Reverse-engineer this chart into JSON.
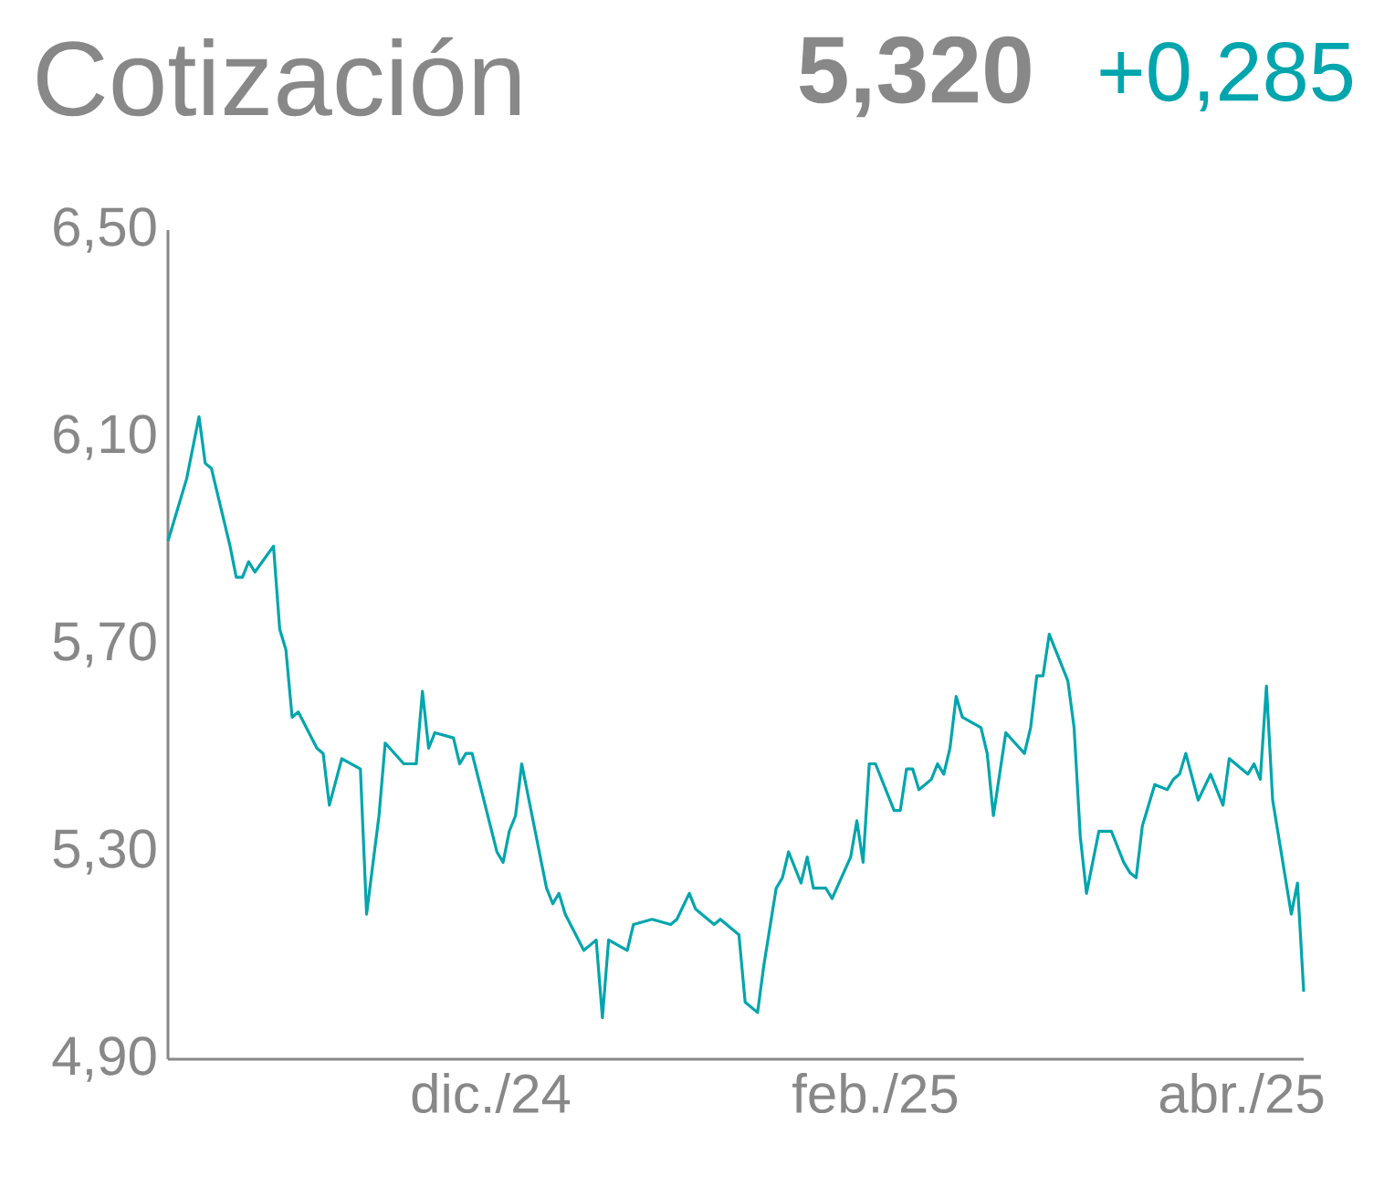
{
  "chart_data": {
    "type": "line",
    "title": "Cotización",
    "annotations": [
      "5,320",
      "+0,285"
    ],
    "color": "#00a5ad",
    "x": [
      "2024-10-10",
      "2024-10-13",
      "2024-10-15",
      "2024-10-16",
      "2024-10-17",
      "2024-10-20",
      "2024-10-21",
      "2024-10-22",
      "2024-10-23",
      "2024-10-24",
      "2024-10-27",
      "2024-10-28",
      "2024-10-29",
      "2024-10-30",
      "2024-10-31",
      "2024-11-03",
      "2024-11-04",
      "2024-11-05",
      "2024-11-07",
      "2024-11-10",
      "2024-11-11",
      "2024-11-13",
      "2024-11-14",
      "2024-11-17",
      "2024-11-19",
      "2024-11-20",
      "2024-11-21",
      "2024-11-22",
      "2024-11-25",
      "2024-11-26",
      "2024-11-27",
      "2024-11-28",
      "2024-12-02",
      "2024-12-03",
      "2024-12-04",
      "2024-12-05",
      "2024-12-06",
      "2024-12-10",
      "2024-12-11",
      "2024-12-12",
      "2024-12-13",
      "2024-12-16",
      "2024-12-17",
      "2024-12-18",
      "2024-12-19",
      "2024-12-20",
      "2024-12-23",
      "2024-12-24",
      "2024-12-27",
      "2024-12-30",
      "2024-12-31",
      "2025-01-02",
      "2025-01-03",
      "2025-01-06",
      "2025-01-07",
      "2025-01-10",
      "2025-01-11",
      "2025-01-13",
      "2025-01-14",
      "2025-01-16",
      "2025-01-17",
      "2025-01-18",
      "2025-01-20",
      "2025-01-21",
      "2025-01-22",
      "2025-01-24",
      "2025-01-25",
      "2025-01-28",
      "2025-01-29",
      "2025-01-30",
      "2025-01-31",
      "2025-02-01",
      "2025-02-04",
      "2025-02-05",
      "2025-02-06",
      "2025-02-07",
      "2025-02-08",
      "2025-02-10",
      "2025-02-11",
      "2025-02-12",
      "2025-02-13",
      "2025-02-14",
      "2025-02-15",
      "2025-02-18",
      "2025-02-19",
      "2025-02-20",
      "2025-02-22",
      "2025-02-25",
      "2025-02-26",
      "2025-02-27",
      "2025-02-28",
      "2025-03-01",
      "2025-03-04",
      "2025-03-05",
      "2025-03-06",
      "2025-03-07",
      "2025-03-09",
      "2025-03-11",
      "2025-03-13",
      "2025-03-14",
      "2025-03-15",
      "2025-03-16",
      "2025-03-18",
      "2025-03-20",
      "2025-03-21",
      "2025-03-22",
      "2025-03-23",
      "2025-03-25",
      "2025-03-27",
      "2025-03-29",
      "2025-03-30",
      "2025-04-02",
      "2025-04-03",
      "2025-04-04",
      "2025-04-05",
      "2025-04-06",
      "2025-04-09",
      "2025-04-10",
      "2025-04-11"
    ],
    "values": [
      5.9,
      6.02,
      6.14,
      6.05,
      6.04,
      5.89,
      5.83,
      5.83,
      5.86,
      5.84,
      5.89,
      5.73,
      5.69,
      5.56,
      5.57,
      5.5,
      5.49,
      5.39,
      5.48,
      5.46,
      5.18,
      5.37,
      5.51,
      5.47,
      5.47,
      5.61,
      5.5,
      5.53,
      5.52,
      5.47,
      5.49,
      5.49,
      5.3,
      5.28,
      5.34,
      5.37,
      5.47,
      5.23,
      5.2,
      5.22,
      5.18,
      5.11,
      5.12,
      5.13,
      4.98,
      5.13,
      5.11,
      5.16,
      5.17,
      5.16,
      5.17,
      5.22,
      5.19,
      5.16,
      5.17,
      5.14,
      5.01,
      4.99,
      5.08,
      5.23,
      5.25,
      5.3,
      5.24,
      5.29,
      5.23,
      5.23,
      5.21,
      5.29,
      5.36,
      5.28,
      5.47,
      5.47,
      5.38,
      5.38,
      5.46,
      5.46,
      5.42,
      5.44,
      5.47,
      5.45,
      5.5,
      5.6,
      5.56,
      5.54,
      5.49,
      5.37,
      5.53,
      5.49,
      5.54,
      5.64,
      5.64,
      5.72,
      5.63,
      5.54,
      5.33,
      5.22,
      5.34,
      5.34,
      5.28,
      5.26,
      5.25,
      5.35,
      5.43,
      5.42,
      5.44,
      5.45,
      5.49,
      5.4,
      5.45,
      5.39,
      5.48,
      5.45,
      5.47,
      5.44,
      5.62,
      5.4,
      5.18,
      5.24,
      5.03
    ],
    "xlim": [
      "2024-10-10",
      "2025-04-11"
    ],
    "xticks": [
      {
        "value": "2024-12-01",
        "label": "dic./24"
      },
      {
        "value": "2025-02-01",
        "label": "feb./25"
      },
      {
        "value": "2025-04-01",
        "label": "abr./25"
      }
    ],
    "ylim": [
      4.9,
      6.5
    ],
    "yticks": [
      {
        "value": 4.9,
        "label": "4,90"
      },
      {
        "value": 5.3,
        "label": "5,30"
      },
      {
        "value": 5.7,
        "label": "5,70"
      },
      {
        "value": 6.1,
        "label": "6,10"
      },
      {
        "value": 6.5,
        "label": "6,50"
      }
    ]
  }
}
